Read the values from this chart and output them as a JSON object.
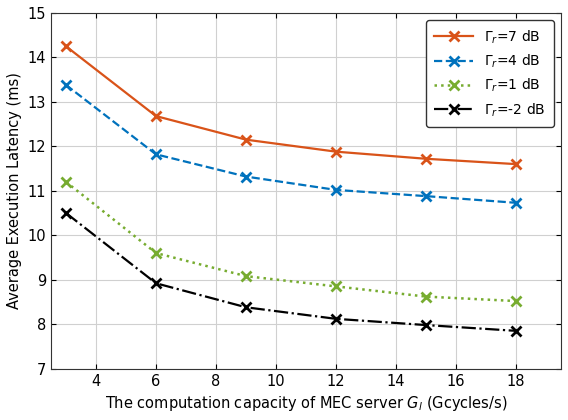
{
  "x": [
    3,
    6,
    9,
    12,
    15,
    18
  ],
  "series": [
    {
      "label": "$\\Gamma_r$=7 dB",
      "y": [
        14.25,
        12.68,
        12.15,
        11.88,
        11.72,
        11.6
      ],
      "color": "#D95319",
      "linestyle": "-",
      "marker": "x",
      "linewidth": 1.6,
      "markersize": 7,
      "markeredgewidth": 2.0
    },
    {
      "label": "$\\Gamma_r$=4 dB",
      "y": [
        13.38,
        11.82,
        11.32,
        11.02,
        10.88,
        10.73
      ],
      "color": "#0072BD",
      "linestyle": "--",
      "marker": "x",
      "linewidth": 1.6,
      "markersize": 7,
      "markeredgewidth": 2.0
    },
    {
      "label": "$\\Gamma_r$=1 dB",
      "y": [
        11.2,
        9.6,
        9.08,
        8.85,
        8.62,
        8.52
      ],
      "color": "#77AC30",
      "linestyle": ":",
      "marker": "x",
      "linewidth": 1.8,
      "markersize": 7,
      "markeredgewidth": 2.0
    },
    {
      "label": "$\\Gamma_r$=-2 dB",
      "y": [
        10.5,
        8.92,
        8.38,
        8.12,
        7.98,
        7.85
      ],
      "color": "#000000",
      "linestyle": "-.",
      "marker": "x",
      "linewidth": 1.6,
      "markersize": 7,
      "markeredgewidth": 2.0
    }
  ],
  "xlabel": "The computation capacity of MEC server $G_l$ (Gcycles/s)",
  "ylabel": "Average Execution Latency (ms)",
  "xlim": [
    2.5,
    19.5
  ],
  "ylim": [
    7,
    15
  ],
  "xticks": [
    4,
    6,
    8,
    10,
    12,
    14,
    16,
    18
  ],
  "yticks": [
    7,
    8,
    9,
    10,
    11,
    12,
    13,
    14,
    15
  ],
  "grid": true,
  "legend_loc": "upper right",
  "label_fontsize": 10.5,
  "tick_fontsize": 10.5,
  "legend_fontsize": 10.0,
  "facecolor": "#ffffff",
  "grid_color": "#d0d0d0",
  "grid_linewidth": 0.8
}
